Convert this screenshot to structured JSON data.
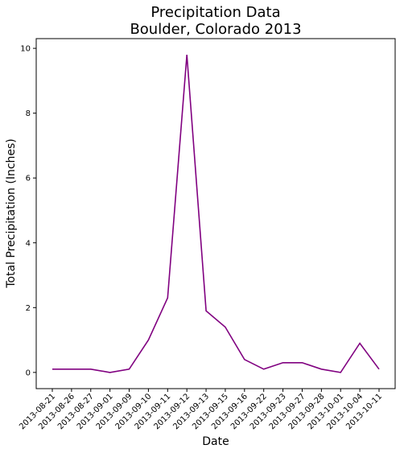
{
  "chart_data": {
    "type": "line",
    "title_lines": [
      "Precipitation Data",
      "Boulder, Colorado 2013"
    ],
    "xlabel": "Date",
    "ylabel": "Total Precipitation (Inches)",
    "categories": [
      "2013-08-21",
      "2013-08-26",
      "2013-08-27",
      "2013-09-01",
      "2013-09-09",
      "2013-09-10",
      "2013-09-11",
      "2013-09-12",
      "2013-09-13",
      "2013-09-15",
      "2013-09-16",
      "2013-09-22",
      "2013-09-23",
      "2013-09-27",
      "2013-09-28",
      "2013-10-01",
      "2013-10-04",
      "2013-10-11"
    ],
    "values": [
      0.1,
      0.1,
      0.1,
      0.0,
      0.1,
      1.0,
      2.3,
      9.8,
      1.9,
      1.4,
      0.4,
      0.1,
      0.3,
      0.3,
      0.1,
      0.0,
      0.9,
      0.1
    ],
    "yticks": [
      "0",
      "2",
      "4",
      "6",
      "8",
      "10"
    ],
    "ylim": [
      -0.5,
      10.3
    ],
    "line_color": "#800080",
    "grid": false
  }
}
